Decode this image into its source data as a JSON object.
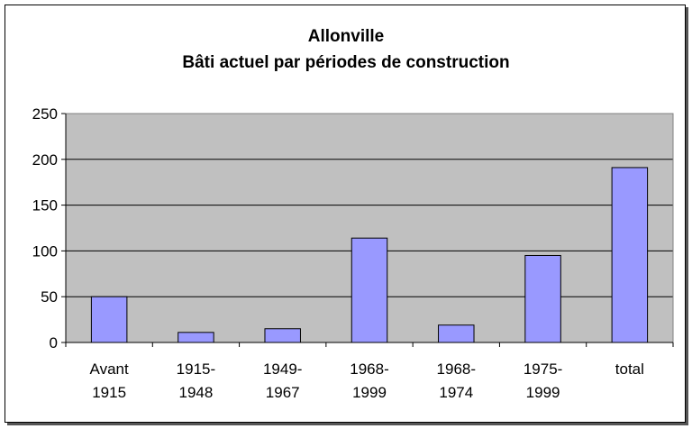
{
  "chart_data": {
    "type": "bar",
    "title": "Allonville",
    "subtitle": "Bâti actuel par périodes de construction",
    "categories": [
      [
        "Avant",
        "1915"
      ],
      [
        "1915-",
        "1948"
      ],
      [
        "1949-",
        "1967"
      ],
      [
        "1968-",
        "1999"
      ],
      [
        "1968-",
        "1974"
      ],
      [
        "1975-",
        "1999"
      ],
      [
        "total"
      ]
    ],
    "values": [
      50,
      11,
      15,
      114,
      19,
      95,
      191
    ],
    "ylim": [
      0,
      250
    ],
    "yticks": [
      0,
      50,
      100,
      150,
      200,
      250
    ],
    "grid": true,
    "colors": {
      "plot_bg": "#c0c0c0",
      "bar_fill": "#9999ff",
      "bar_stroke": "#000000",
      "grid": "#000000"
    }
  }
}
